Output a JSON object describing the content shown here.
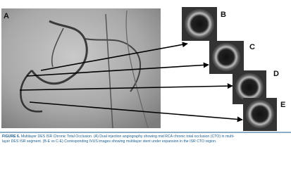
{
  "figure": {
    "panels": [
      {
        "label": "A"
      },
      {
        "label": "B"
      },
      {
        "label": "C"
      },
      {
        "label": "D"
      },
      {
        "label": "E"
      }
    ],
    "caption": {
      "label": "FIGURE 6.",
      "lines": [
        "Multilayer DES ISR Chronic Total Occlusion. (A) Dual injection angiography showing mid RCA chronic total occlusion (CTO) in multi-",
        "layer DES ISR segment. (B-E vs C-E) Corresponding IVUS images showing multilayer stent under expansion in the ISR CTO region."
      ]
    }
  }
}
